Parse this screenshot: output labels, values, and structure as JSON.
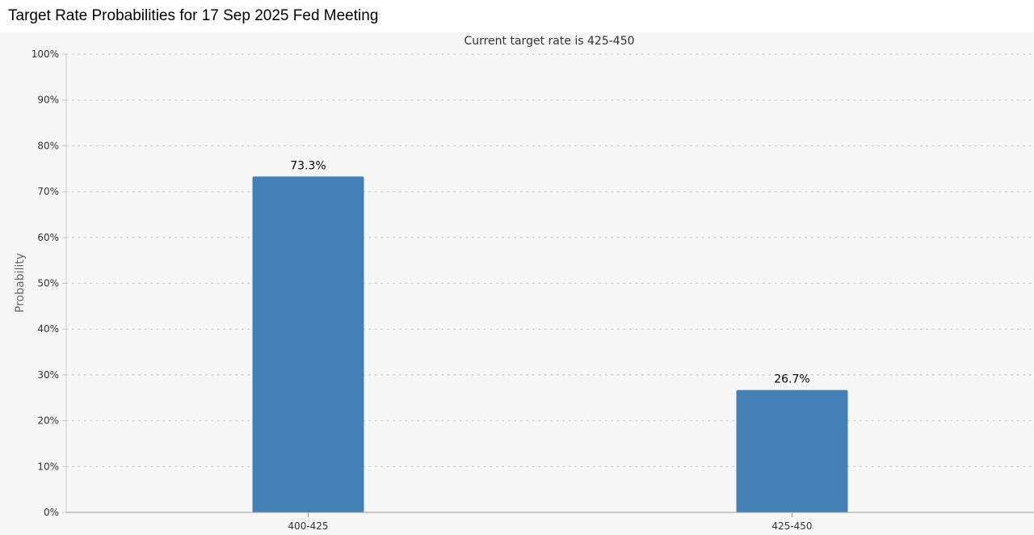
{
  "page": {
    "title": "Target Rate Probabilities for 17 Sep 2025 Fed Meeting"
  },
  "chart_data": {
    "type": "bar",
    "title": "Target Rate Probabilities for 17 Sep 2025 Fed Meeting",
    "subtitle": "Current target rate is 425-450",
    "xlabel": "",
    "ylabel": "Probability",
    "categories": [
      "400-425",
      "425-450"
    ],
    "values": [
      73.3,
      26.7
    ],
    "value_labels": [
      "73.3%",
      "26.7%"
    ],
    "ylim": [
      0,
      100
    ],
    "yticks": [
      0,
      10,
      20,
      30,
      40,
      50,
      60,
      70,
      80,
      90,
      100
    ],
    "ytick_labels": [
      "0%",
      "10%",
      "20%",
      "30%",
      "40%",
      "50%",
      "60%",
      "70%",
      "80%",
      "90%",
      "100%"
    ],
    "grid": "horizontal dotted",
    "legend": "none",
    "bar_color": "#4480b6"
  }
}
